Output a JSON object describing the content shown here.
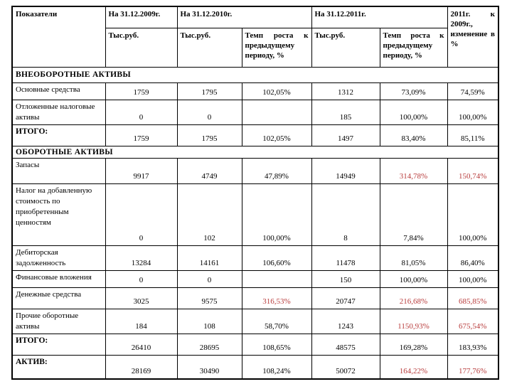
{
  "document": {
    "colors": {
      "negative_highlight": "#b83c3c",
      "text": "#000000",
      "border": "#000000",
      "background": "#ffffff"
    },
    "header": {
      "indicators": "Показатели",
      "date_2009": "На 31.12.2009г.",
      "date_2010": "На 31.12.2010г.",
      "date_2011": "На 31.12.2011г.",
      "change": "2011г. к 2009г., изменение в %",
      "unit_2009": "Тыс.руб.",
      "unit_2010": "Тыс.руб.",
      "growth_2010": "Темп роста к предыдущему периоду, %",
      "unit_2011": "Тыс.руб.",
      "growth_2011": "Темп роста к предыдущему периоду, %"
    },
    "rows": [
      {
        "type": "section",
        "id": "section-vneoborotnye",
        "label": "ВНЕОБОРОТНЫЕ АКТИВЫ"
      },
      {
        "type": "data",
        "id": "osnovnye-sredstva",
        "label": "Основные средства",
        "cells": [
          "1759",
          "1795",
          "102,05%",
          "1312",
          "73,09%",
          "74,59%"
        ],
        "red": []
      },
      {
        "type": "data",
        "id": "otlozhennye-nalogovye-aktivy",
        "label": "Отложенные налоговые активы",
        "cells": [
          "0",
          "0",
          "",
          "185",
          "100,00%",
          "100,00%"
        ],
        "red": []
      },
      {
        "type": "total",
        "id": "itogo-vneoborotnye",
        "label": "ИТОГО:",
        "cells": [
          "1759",
          "1795",
          "102,05%",
          "1497",
          "83,40%",
          "85,11%"
        ],
        "red": []
      },
      {
        "type": "section",
        "id": "section-oborotnye",
        "label": "ОБОРОТНЫЕ АКТИВЫ"
      },
      {
        "type": "data",
        "id": "zapasy",
        "label": "Запасы",
        "cells": [
          "9917",
          "4749",
          "47,89%",
          "14949",
          "314,78%",
          "150,74%"
        ],
        "red": [
          4,
          5
        ]
      },
      {
        "type": "data",
        "id": "nds",
        "label": "Налог на добавленную стоимость по приобретенным ценностям",
        "cells": [
          "0",
          "102",
          "100,00%",
          "8",
          "7,84%",
          "100,00%"
        ],
        "red": []
      },
      {
        "type": "data",
        "id": "debitorskaya-zadolzhennost",
        "label": "Дебиторская задолженность",
        "cells": [
          "13284",
          "14161",
          "106,60%",
          "11478",
          "81,05%",
          "86,40%"
        ],
        "red": []
      },
      {
        "type": "data",
        "id": "finansovye-vlozheniya",
        "label": "Финансовые вложения",
        "cells": [
          "0",
          "0",
          "",
          "150",
          "100,00%",
          "100,00%"
        ],
        "red": []
      },
      {
        "type": "data",
        "id": "denezhnye-sredstva",
        "label": "Денежные средства",
        "cells": [
          "3025",
          "9575",
          "316,53%",
          "20747",
          "216,68%",
          "685,85%"
        ],
        "red": [
          2,
          4,
          5
        ]
      },
      {
        "type": "data",
        "id": "prochie-oborotnye-aktivy",
        "label": "Прочие оборотные активы",
        "cells": [
          "184",
          "108",
          "58,70%",
          "1243",
          "1150,93%",
          "675,54%"
        ],
        "red": [
          4,
          5
        ]
      },
      {
        "type": "total",
        "id": "itogo-oborotnye",
        "label": "ИТОГО:",
        "cells": [
          "26410",
          "28695",
          "108,65%",
          "48575",
          "169,28%",
          "183,93%"
        ],
        "red": []
      },
      {
        "type": "total",
        "id": "aktiv",
        "label": "АКТИВ:",
        "cells": [
          "28169",
          "30490",
          "108,24%",
          "50072",
          "164,22%",
          "177,76%"
        ],
        "red": [
          4,
          5
        ]
      }
    ]
  }
}
